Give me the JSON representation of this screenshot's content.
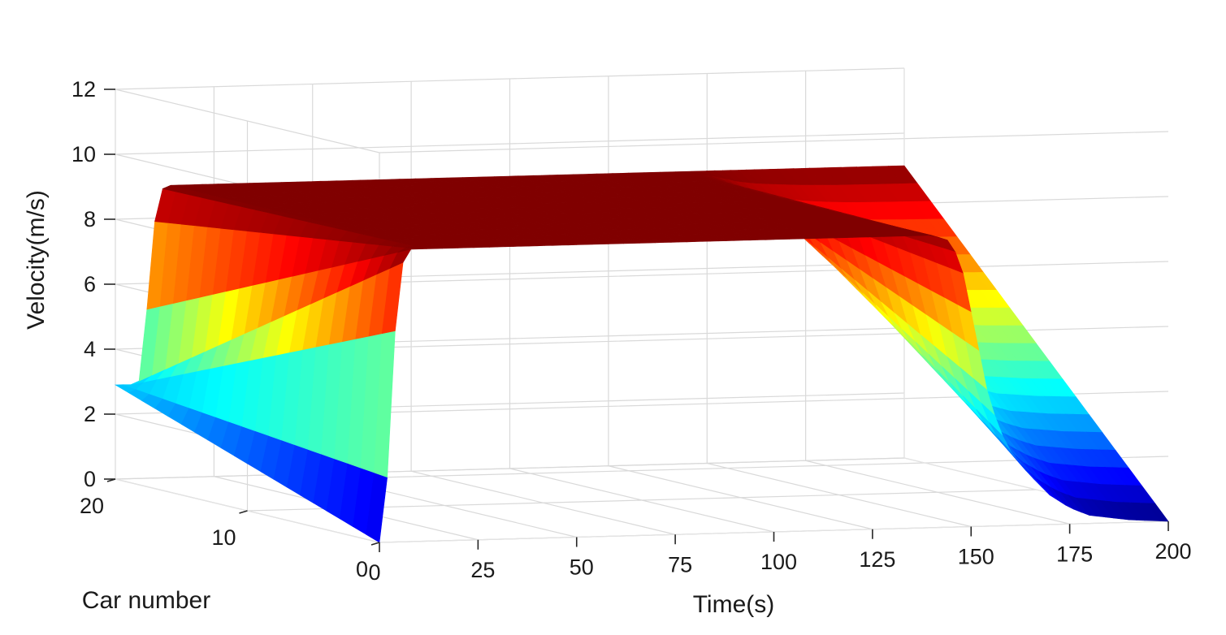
{
  "chart_data": {
    "type": "surface",
    "title": "",
    "xlabel": "Time(s)",
    "ylabel": "Car number",
    "zlabel": "Velocity(m/s)",
    "xlim": [
      0,
      200
    ],
    "ylim": [
      0,
      20
    ],
    "zlim": [
      0,
      12
    ],
    "x_ticks": [
      0,
      25,
      50,
      75,
      100,
      125,
      150,
      175,
      200
    ],
    "x_tick_labels": [
      "0",
      "25",
      "50",
      "75",
      "100",
      "125",
      "150",
      "175",
      "200"
    ],
    "y_ticks": [
      0,
      10,
      20
    ],
    "y_tick_labels": [
      "0",
      "10",
      "20"
    ],
    "z_ticks": [
      0,
      2,
      4,
      6,
      8,
      10,
      12
    ],
    "z_tick_labels": [
      "0",
      "2",
      "4",
      "6",
      "8",
      "10",
      "12"
    ],
    "grid": true,
    "colormap": "jet",
    "colormap_range": [
      0,
      9
    ],
    "series": [
      {
        "x": [
          0,
          2,
          4,
          6,
          8,
          10,
          12,
          14,
          16,
          18,
          20,
          25,
          30,
          50,
          75,
          100,
          125,
          140,
          145,
          148,
          151,
          154,
          157,
          160,
          163,
          166,
          170,
          175,
          180,
          190,
          200
        ],
        "car_0_velocity": [
          0,
          2.0,
          6.5,
          8.6,
          9.0,
          9.0,
          9.0,
          9.0,
          9.0,
          9.0,
          9.0,
          9.0,
          9.0,
          9.0,
          9.0,
          9.0,
          9.0,
          9.0,
          8.8,
          7.8,
          6.0,
          4.2,
          3.0,
          2.3,
          1.8,
          1.4,
          0.9,
          0.5,
          0.25,
          0.08,
          0
        ],
        "car_20_velocity": [
          2.9,
          2.9,
          2.9,
          3.0,
          5.2,
          7.9,
          8.9,
          9.0,
          9.0,
          9.0,
          9.0,
          9.0,
          9.0,
          9.0,
          9.0,
          9.0,
          9.0,
          9.0,
          9.0,
          9.0,
          9.0,
          9.0,
          9.0,
          9.0,
          9.0,
          9.0,
          9.0,
          9.0,
          9.0,
          9.0,
          9.0
        ]
      }
    ]
  }
}
